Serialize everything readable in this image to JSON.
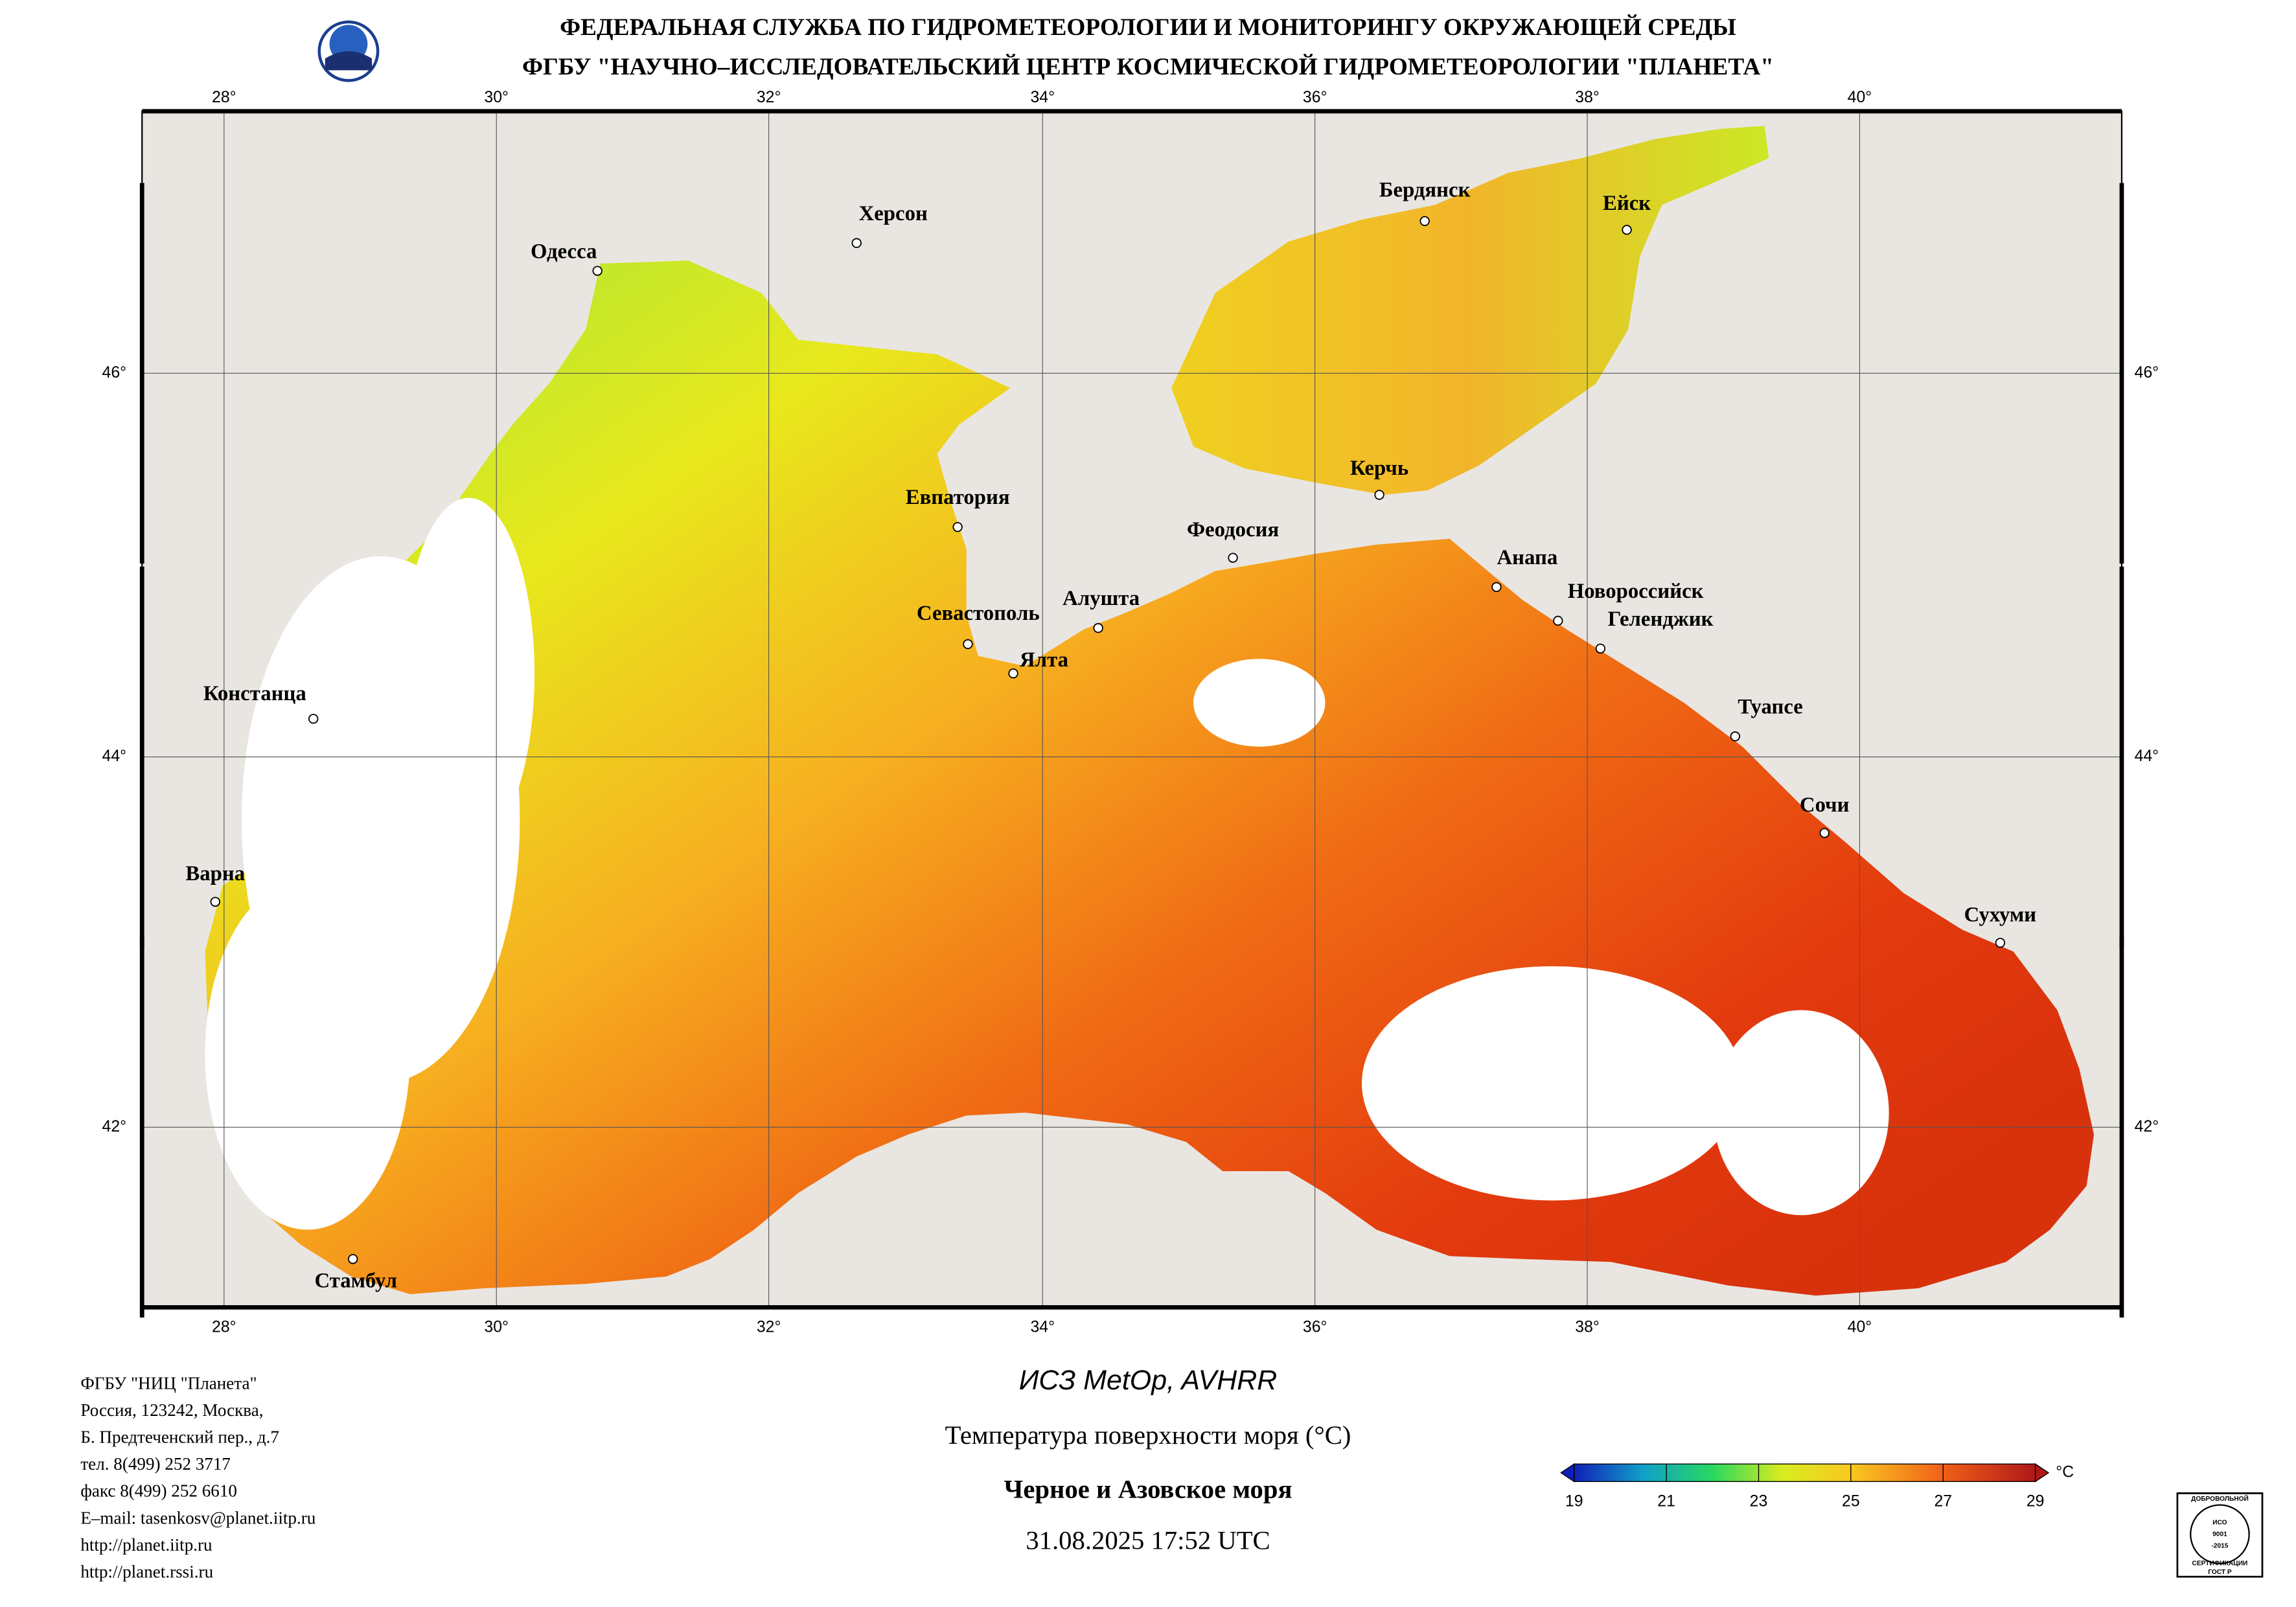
{
  "header": {
    "lines": [
      "ФЕДЕРАЛЬНАЯ СЛУЖБА ПО ГИДРОМЕТЕОРОЛОГИИ И МОНИТОРИНГУ ОКРУЖАЮЩЕЙ СРЕДЫ",
      "ФГБУ \"НАУЧНО–ИССЛЕДОВАТЕЛЬСКИЙ ЦЕНТР КОСМИЧЕСКОЙ ГИДРОМЕТЕОРОЛОГИИ \"ПЛАНЕТА\""
    ]
  },
  "map": {
    "lon_labels": [
      "28°",
      "30°",
      "32°",
      "34°",
      "36°",
      "38°",
      "40°"
    ],
    "lat_labels": [
      "46°",
      "44°",
      "42°"
    ],
    "cities": [
      "Херсон",
      "Одесса",
      "Бердянск",
      "Ейск",
      "Керчь",
      "Евпатория",
      "Феодосия",
      "Анапа",
      "Новороссийск",
      "Геленджик",
      "Алушта",
      "Севастополь",
      "Ялта",
      "Констанца",
      "Туапсе",
      "Сочи",
      "Варна",
      "Сухуми",
      "Стамбул"
    ]
  },
  "footer": {
    "lines": [
      "ФГБУ \"НИЦ \"Планета\"",
      "Россия, 123242, Москва,",
      "Б. Предтеченский пер., д.7",
      "тел. 8(499) 252 3717",
      "факс 8(499) 252 6610",
      "E–mail: tasenkosv@planet.iitp.ru",
      "http://planet.iitp.ru",
      "http://planet.rssi.ru"
    ]
  },
  "caption": {
    "satellite": "ИСЗ MetOp, AVHRR",
    "title": "Температура поверхности моря (°C)",
    "region": "Черное и Азовское моря",
    "datetime": "31.08.2025 17:52 UTC"
  },
  "colorbar": {
    "ticks": [
      19,
      21,
      23,
      25,
      27,
      29
    ],
    "unit": "°C"
  },
  "stamp": {
    "lines": [
      "ДОБРОВОЛЬНОЙ",
      "ИСО",
      "9001",
      "-2015",
      "СЕРТИФИКАЦИИ",
      "ГОСТ Р"
    ]
  }
}
